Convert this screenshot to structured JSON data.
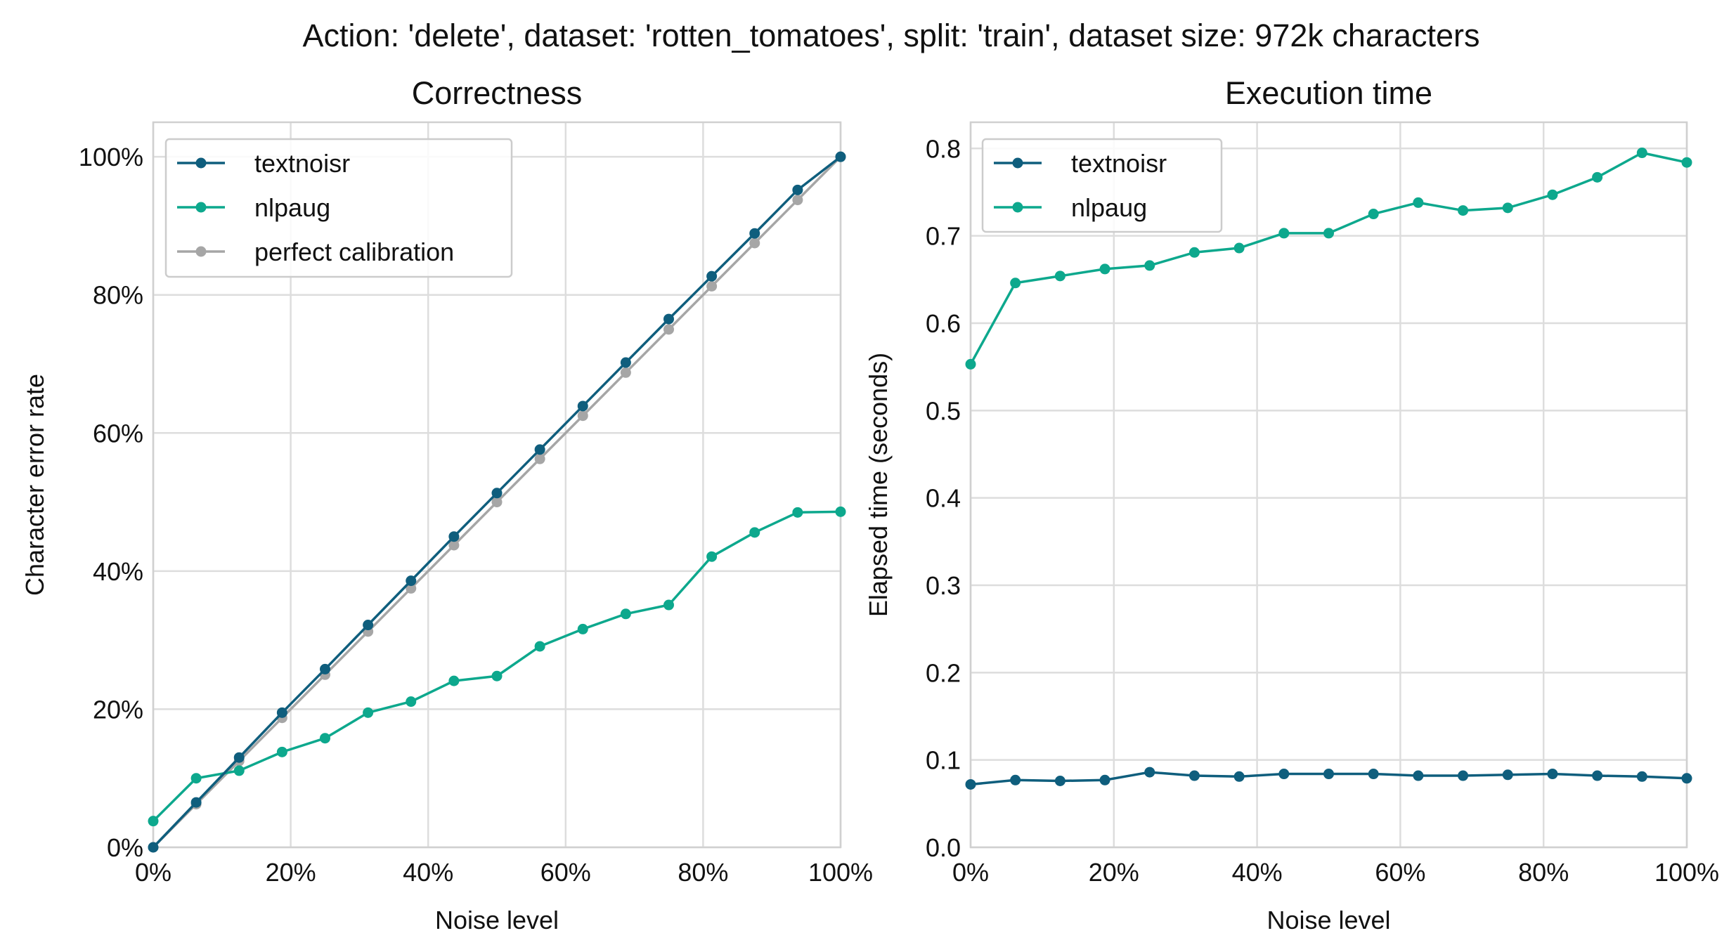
{
  "figure": {
    "suptitle": "Action: 'delete', dataset: 'rotten_tomatoes', split: 'train', dataset size: 972k characters"
  },
  "colors": {
    "textnoisr": "#0f5e7d",
    "nlpaug": "#0da88d",
    "perfect_calibration": "#a6a6a6"
  },
  "chart_data": [
    {
      "type": "line",
      "title": "Correctness",
      "xlabel": "Noise level",
      "ylabel": "Character error rate",
      "x": [
        0,
        0.0625,
        0.125,
        0.1875,
        0.25,
        0.3125,
        0.375,
        0.4375,
        0.5,
        0.5625,
        0.625,
        0.6875,
        0.75,
        0.8125,
        0.875,
        0.9375,
        1.0
      ],
      "xlim": [
        0,
        1
      ],
      "ylim": [
        0,
        1.05
      ],
      "xticks": [
        0,
        0.2,
        0.4,
        0.6,
        0.8,
        1.0
      ],
      "xtick_labels": [
        "0%",
        "20%",
        "40%",
        "60%",
        "80%",
        "100%"
      ],
      "yticks": [
        0,
        0.2,
        0.4,
        0.6,
        0.8,
        1.0
      ],
      "ytick_labels": [
        "0%",
        "20%",
        "40%",
        "60%",
        "80%",
        "100%"
      ],
      "grid": true,
      "legend_position": "top-left",
      "series": [
        {
          "name": "textnoisr",
          "color_key": "textnoisr",
          "values": [
            0.0,
            0.065,
            0.13,
            0.195,
            0.258,
            0.322,
            0.386,
            0.45,
            0.513,
            0.576,
            0.639,
            0.702,
            0.765,
            0.827,
            0.889,
            0.952,
            1.0
          ]
        },
        {
          "name": "nlpaug",
          "color_key": "nlpaug",
          "values": [
            0.038,
            0.1,
            0.111,
            0.138,
            0.158,
            0.195,
            0.211,
            0.241,
            0.248,
            0.291,
            0.316,
            0.338,
            0.351,
            0.421,
            0.456,
            0.485,
            0.486
          ]
        },
        {
          "name": "perfect calibration",
          "color_key": "perfect_calibration",
          "values": [
            0.0,
            0.0625,
            0.125,
            0.1875,
            0.25,
            0.3125,
            0.375,
            0.4375,
            0.5,
            0.5625,
            0.625,
            0.6875,
            0.75,
            0.8125,
            0.875,
            0.9375,
            1.0
          ]
        }
      ]
    },
    {
      "type": "line",
      "title": "Execution time",
      "xlabel": "Noise level",
      "ylabel": "Elapsed time (seconds)",
      "x": [
        0,
        0.0625,
        0.125,
        0.1875,
        0.25,
        0.3125,
        0.375,
        0.4375,
        0.5,
        0.5625,
        0.625,
        0.6875,
        0.75,
        0.8125,
        0.875,
        0.9375,
        1.0
      ],
      "xlim": [
        0,
        1
      ],
      "ylim": [
        0,
        0.83
      ],
      "xticks": [
        0,
        0.2,
        0.4,
        0.6,
        0.8,
        1.0
      ],
      "xtick_labels": [
        "0%",
        "20%",
        "40%",
        "60%",
        "80%",
        "100%"
      ],
      "yticks": [
        0,
        0.1,
        0.2,
        0.3,
        0.4,
        0.5,
        0.6,
        0.7,
        0.8
      ],
      "ytick_labels": [
        "0.0",
        "0.1",
        "0.2",
        "0.3",
        "0.4",
        "0.5",
        "0.6",
        "0.7",
        "0.8"
      ],
      "grid": true,
      "legend_position": "top-left",
      "series": [
        {
          "name": "textnoisr",
          "color_key": "textnoisr",
          "values": [
            0.072,
            0.077,
            0.076,
            0.077,
            0.086,
            0.082,
            0.081,
            0.084,
            0.084,
            0.084,
            0.082,
            0.082,
            0.083,
            0.084,
            0.082,
            0.081,
            0.079
          ]
        },
        {
          "name": "nlpaug",
          "color_key": "nlpaug",
          "values": [
            0.553,
            0.646,
            0.654,
            0.662,
            0.666,
            0.681,
            0.686,
            0.703,
            0.703,
            0.725,
            0.738,
            0.729,
            0.732,
            0.747,
            0.767,
            0.795,
            0.784
          ]
        }
      ]
    }
  ]
}
